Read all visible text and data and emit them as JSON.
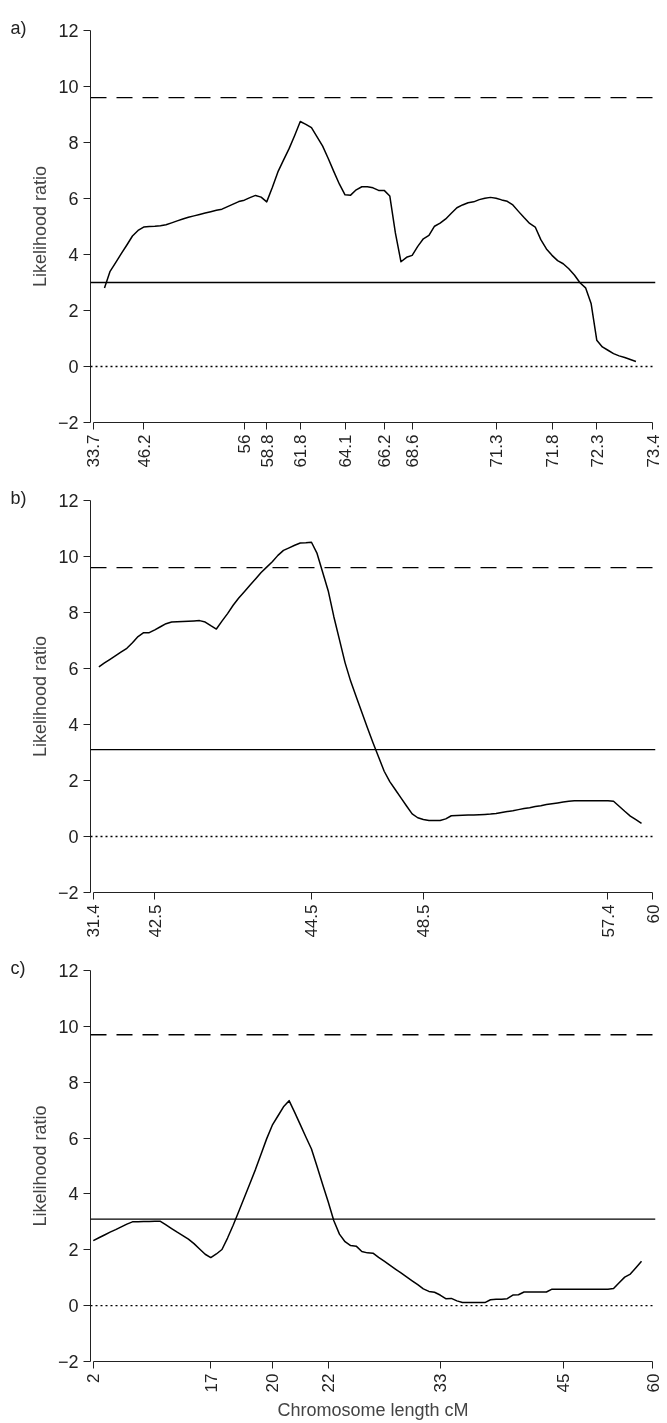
{
  "chart_data": [
    {
      "type": "line",
      "title": "a)",
      "ylabel": "Likelihood ratio",
      "ylim": [
        -2,
        12
      ],
      "yticks": [
        -2,
        0,
        2,
        4,
        6,
        8,
        10,
        12
      ],
      "categories": [
        "33.7",
        null,
        null,
        null,
        null,
        null,
        null,
        null,
        null,
        "46.2",
        null,
        null,
        null,
        null,
        null,
        null,
        null,
        null,
        null,
        null,
        null,
        null,
        null,
        null,
        null,
        null,
        null,
        "56",
        null,
        null,
        null,
        "58.8",
        null,
        null,
        null,
        null,
        null,
        "61.8",
        null,
        null,
        null,
        null,
        null,
        null,
        null,
        "64.1",
        null,
        null,
        null,
        null,
        null,
        null,
        "66.2",
        null,
        null,
        null,
        null,
        "68.6",
        null,
        null,
        null,
        null,
        null,
        null,
        null,
        null,
        null,
        null,
        null,
        null,
        null,
        null,
        "71.3",
        null,
        null,
        null,
        null,
        null,
        null,
        null,
        null,
        null,
        "71.8",
        null,
        null,
        null,
        null,
        null,
        null,
        null,
        "72.3",
        null,
        null,
        null,
        null,
        null,
        null,
        null,
        null,
        null,
        "73.4"
      ],
      "grid": false,
      "line_style": "solid",
      "ref_lines": [
        {
          "axis": "y",
          "value": 9.6,
          "label": null,
          "color": "#000000",
          "line_style": "dashed"
        },
        {
          "axis": "y",
          "value": 3.0,
          "label": null,
          "color": "#000000",
          "line_style": "solid"
        },
        {
          "axis": "y",
          "value": 0,
          "label": null,
          "color": "#000000",
          "line_style": "dotted"
        }
      ],
      "series": [
        {
          "color": "#000000",
          "values": [
            null,
            null,
            2.8,
            3.4,
            3.71,
            4.03,
            4.34,
            4.66,
            4.86,
            4.98,
            5.0,
            5.01,
            5.03,
            5.06,
            5.13,
            5.2,
            5.27,
            5.33,
            5.38,
            5.43,
            5.48,
            5.53,
            5.58,
            5.62,
            5.71,
            5.8,
            5.89,
            5.94,
            6.03,
            6.11,
            6.05,
            5.88,
            6.39,
            6.95,
            7.37,
            7.78,
            8.25,
            8.75,
            8.65,
            8.53,
            8.2,
            7.87,
            7.43,
            6.96,
            6.51,
            6.13,
            6.12,
            6.31,
            6.42,
            6.42,
            6.38,
            6.29,
            6.29,
            6.09,
            4.77,
            3.74,
            3.9,
            3.97,
            4.29,
            4.56,
            4.68,
            5.01,
            5.12,
            5.27,
            5.47,
            5.67,
            5.77,
            5.85,
            5.88,
            5.96,
            6.01,
            6.04,
            6.01,
            5.95,
            5.9,
            5.77,
            5.54,
            5.32,
            5.11,
            4.98,
            4.53,
            4.2,
            3.97,
            3.78,
            3.67,
            3.49,
            3.27,
            2.99,
            2.81,
            2.24,
            0.94,
            0.7,
            0.58,
            0.46,
            0.38,
            0.32,
            0.25,
            0.18,
            null,
            null,
            null
          ]
        }
      ]
    },
    {
      "type": "line",
      "title": "b)",
      "ylabel": "Likelihood ratio",
      "ylim": [
        -2,
        12
      ],
      "yticks": [
        -2,
        0,
        2,
        4,
        6,
        8,
        10,
        12
      ],
      "categories": [
        "31.4",
        null,
        null,
        null,
        null,
        null,
        null,
        null,
        null,
        null,
        null,
        "42.5",
        null,
        null,
        null,
        null,
        null,
        null,
        null,
        null,
        null,
        null,
        null,
        null,
        null,
        null,
        null,
        null,
        null,
        null,
        null,
        null,
        null,
        null,
        null,
        null,
        null,
        null,
        null,
        "44.5",
        null,
        null,
        null,
        null,
        null,
        null,
        null,
        null,
        null,
        null,
        null,
        null,
        null,
        null,
        null,
        null,
        null,
        null,
        null,
        "48.5",
        null,
        null,
        null,
        null,
        null,
        null,
        null,
        null,
        null,
        null,
        null,
        null,
        null,
        null,
        null,
        null,
        null,
        null,
        null,
        null,
        null,
        null,
        null,
        null,
        null,
        null,
        null,
        null,
        null,
        null,
        null,
        null,
        "57.4",
        null,
        null,
        null,
        null,
        null,
        null,
        null,
        "60"
      ],
      "grid": false,
      "line_style": "solid",
      "ref_lines": [
        {
          "axis": "y",
          "value": 9.6,
          "label": null,
          "color": "#000000",
          "line_style": "dashed"
        },
        {
          "axis": "y",
          "value": 3.1,
          "label": null,
          "color": "#000000",
          "line_style": "solid"
        },
        {
          "axis": "y",
          "value": 0,
          "label": null,
          "color": "#000000",
          "line_style": "dotted"
        }
      ],
      "series": [
        {
          "color": "#000000",
          "values": [
            null,
            6.06,
            6.2,
            6.33,
            6.46,
            6.59,
            6.72,
            6.92,
            7.14,
            7.28,
            7.28,
            7.38,
            7.49,
            7.6,
            7.66,
            7.67,
            7.68,
            7.69,
            7.7,
            7.71,
            7.66,
            7.53,
            7.41,
            7.69,
            7.96,
            8.26,
            8.52,
            8.74,
            8.97,
            9.2,
            9.43,
            9.62,
            9.81,
            10.04,
            10.22,
            10.31,
            10.4,
            10.48,
            10.49,
            10.51,
            10.11,
            9.44,
            8.77,
            7.85,
            7.03,
            6.21,
            5.55,
            4.99,
            4.44,
            3.88,
            3.35,
            2.84,
            2.33,
            1.96,
            1.67,
            1.38,
            1.09,
            0.81,
            0.67,
            0.61,
            0.57,
            0.57,
            0.57,
            0.63,
            0.74,
            0.75,
            0.76,
            0.77,
            0.77,
            0.78,
            0.79,
            0.8,
            0.82,
            0.86,
            0.89,
            0.92,
            0.96,
            1.0,
            1.03,
            1.07,
            1.1,
            1.14,
            1.17,
            1.2,
            1.23,
            1.26,
            1.28,
            1.28,
            1.28,
            1.28,
            1.28,
            1.28,
            1.28,
            1.26,
            1.08,
            0.9,
            0.73,
            0.6,
            0.47,
            null,
            null
          ]
        }
      ]
    },
    {
      "type": "line",
      "title": "c)",
      "ylabel": "Likelihood ratio",
      "xlabel": "Chromosome length cM",
      "ylim": [
        -2,
        12
      ],
      "yticks": [
        -2,
        0,
        2,
        4,
        6,
        8,
        10,
        12
      ],
      "categories": [
        "2",
        null,
        null,
        null,
        null,
        null,
        null,
        null,
        null,
        null,
        null,
        null,
        null,
        null,
        null,
        null,
        null,
        null,
        null,
        null,
        null,
        "17",
        null,
        null,
        null,
        null,
        null,
        null,
        null,
        null,
        null,
        null,
        "20",
        null,
        null,
        null,
        null,
        null,
        null,
        null,
        null,
        null,
        "22",
        null,
        null,
        null,
        null,
        null,
        null,
        null,
        null,
        null,
        null,
        null,
        null,
        null,
        null,
        null,
        null,
        null,
        null,
        null,
        "33",
        null,
        null,
        null,
        null,
        null,
        null,
        null,
        null,
        null,
        null,
        null,
        null,
        null,
        null,
        null,
        null,
        null,
        null,
        null,
        null,
        null,
        "45",
        null,
        null,
        null,
        null,
        null,
        null,
        null,
        null,
        null,
        null,
        null,
        null,
        null,
        null,
        null,
        "60"
      ],
      "grid": false,
      "line_style": "solid",
      "ref_lines": [
        {
          "axis": "y",
          "value": 9.7,
          "label": null,
          "color": "#000000",
          "line_style": "dashed"
        },
        {
          "axis": "y",
          "value": 3.1,
          "label": null,
          "color": "#000000",
          "line_style": "solid"
        },
        {
          "axis": "y",
          "value": 0,
          "label": null,
          "color": "#000000",
          "line_style": "dotted"
        }
      ],
      "series": [
        {
          "color": "#000000",
          "values": [
            2.33,
            2.43,
            2.53,
            2.63,
            2.72,
            2.82,
            2.92,
            3.0,
            3.0,
            3.01,
            3.01,
            3.02,
            3.02,
            2.89,
            2.76,
            2.63,
            2.51,
            2.38,
            2.22,
            2.03,
            1.84,
            1.72,
            1.85,
            2.01,
            2.42,
            2.88,
            3.37,
            3.87,
            4.37,
            4.88,
            5.43,
            5.98,
            6.46,
            6.79,
            7.12,
            7.34,
            6.92,
            6.48,
            6.04,
            5.61,
            4.98,
            4.34,
            3.71,
            3.04,
            2.56,
            2.29,
            2.15,
            2.13,
            1.94,
            1.89,
            1.88,
            1.73,
            1.59,
            1.45,
            1.31,
            1.17,
            1.03,
            0.89,
            0.75,
            0.6,
            0.51,
            0.48,
            0.38,
            0.25,
            0.26,
            0.17,
            0.11,
            0.11,
            0.11,
            0.11,
            0.11,
            0.21,
            0.23,
            0.23,
            0.25,
            0.38,
            0.39,
            0.49,
            0.49,
            0.49,
            0.49,
            0.49,
            0.59,
            0.59,
            0.59,
            0.59,
            0.59,
            0.59,
            0.59,
            0.59,
            0.59,
            0.59,
            0.59,
            0.61,
            0.82,
            1.02,
            1.13,
            1.36,
            1.59,
            null,
            null
          ]
        }
      ]
    }
  ]
}
